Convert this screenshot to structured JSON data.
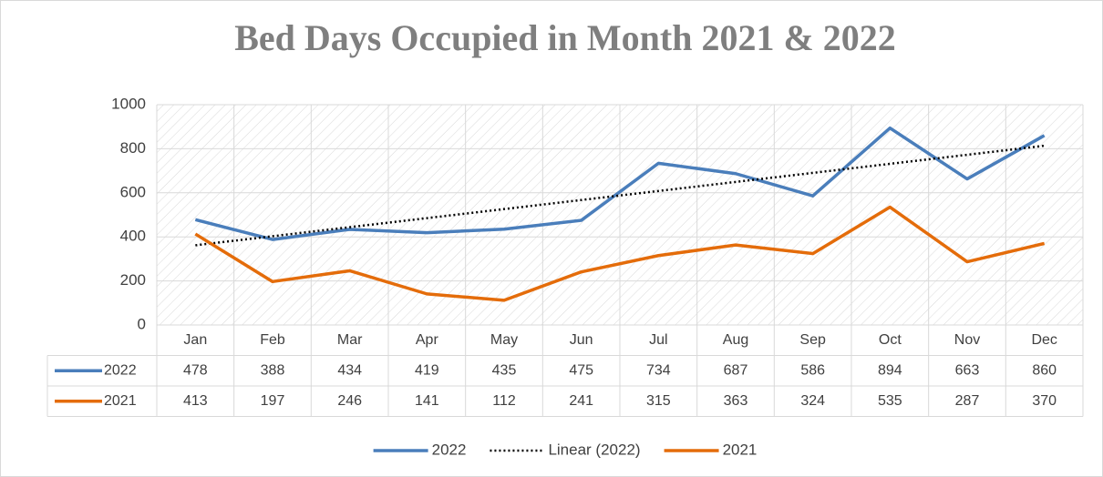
{
  "chart_data": {
    "type": "line",
    "title": "Bed Days Occupied in Month 2021 & 2022",
    "categories": [
      "Jan",
      "Feb",
      "Mar",
      "Apr",
      "May",
      "Jun",
      "Jul",
      "Aug",
      "Sep",
      "Oct",
      "Nov",
      "Dec"
    ],
    "series": [
      {
        "name": "2022",
        "color": "#4a7ebb",
        "values": [
          478,
          388,
          434,
          419,
          435,
          475,
          734,
          687,
          586,
          894,
          663,
          860
        ],
        "trendline": {
          "name": "Linear (2022)",
          "type": "linear",
          "color": "#000000"
        }
      },
      {
        "name": "2021",
        "color": "#e46c0a",
        "values": [
          413,
          197,
          246,
          141,
          112,
          241,
          315,
          363,
          324,
          535,
          287,
          370
        ]
      }
    ],
    "ylim": [
      0,
      1000
    ],
    "yticks": [
      0,
      200,
      400,
      600,
      800,
      1000
    ],
    "grid": true,
    "legend": "bottom",
    "data_table": true
  }
}
